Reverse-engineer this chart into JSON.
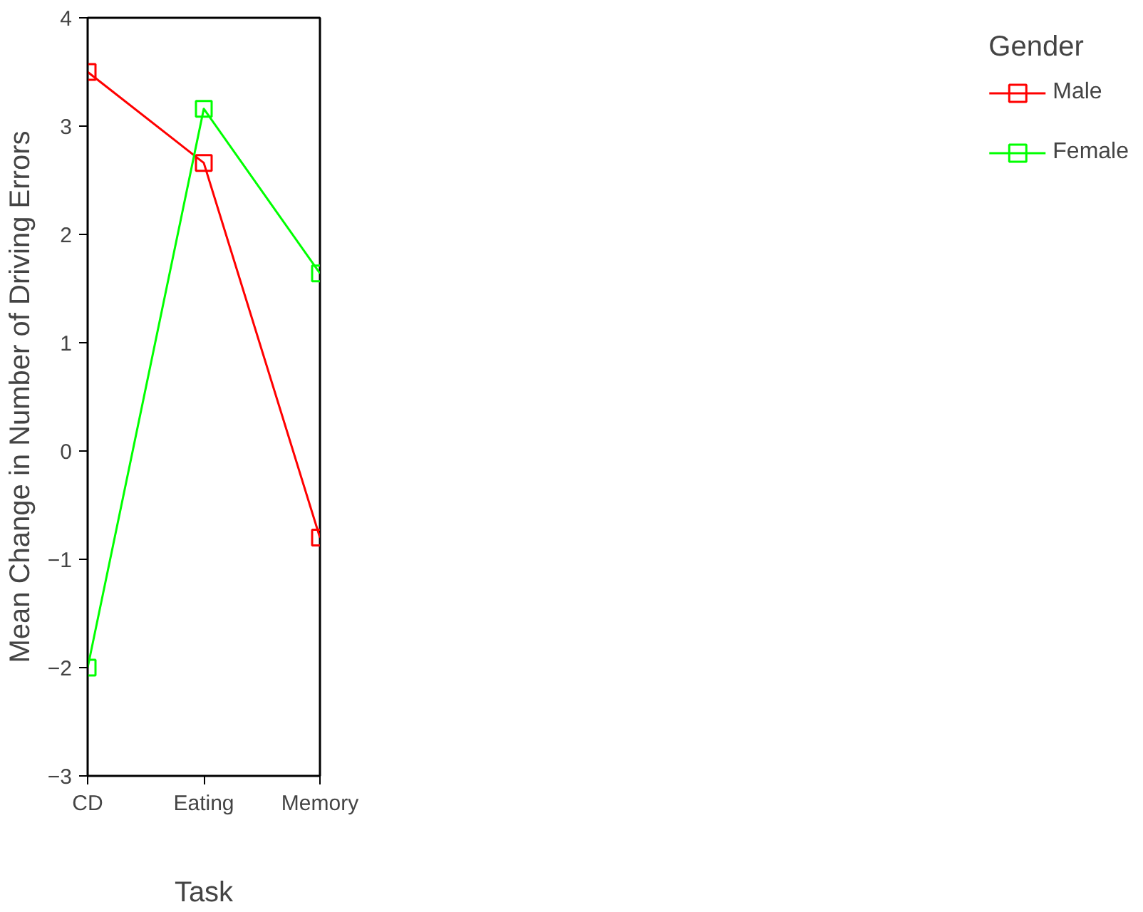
{
  "chart_data": {
    "type": "line",
    "xlabel": "Task",
    "ylabel": "Mean Change in Number of Driving Errors",
    "legend_title": "Gender",
    "categories": [
      "CD",
      "Eating",
      "Memory"
    ],
    "series": [
      {
        "name": "Male",
        "color": "#ff0000",
        "values": [
          3.5,
          2.66,
          -0.8
        ]
      },
      {
        "name": "Female",
        "color": "#00ff00",
        "values": [
          -2.0,
          3.16,
          1.64
        ]
      }
    ],
    "ylim": [
      -3,
      4
    ],
    "yticks": [
      -3,
      -2,
      -1,
      0,
      1,
      2,
      3,
      4
    ],
    "marker": "square",
    "line_style": "solid",
    "grid": false,
    "legend": "right"
  }
}
